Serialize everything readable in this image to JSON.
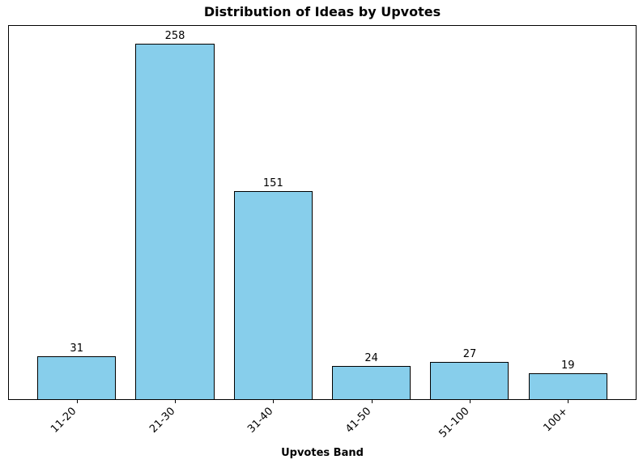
{
  "chart_data": {
    "type": "bar",
    "title": "Distribution of Ideas by Upvotes",
    "xlabel": "Upvotes Band",
    "ylabel": "",
    "categories": [
      "11-20",
      "21-30",
      "31-40",
      "41-50",
      "51-100",
      "100+"
    ],
    "values": [
      31,
      258,
      151,
      24,
      27,
      19
    ],
    "ylim": [
      0,
      271
    ],
    "bar_width_fraction": 0.8,
    "x_margin_fraction": 0.05,
    "bar_color": "#87CEEB",
    "bar_edge_color": "#000000",
    "axis_color": "#000000",
    "background_color": "#ffffff",
    "grid": false,
    "legend": null,
    "value_labels_shown": true,
    "tick_label_rotation_deg": 45
  }
}
